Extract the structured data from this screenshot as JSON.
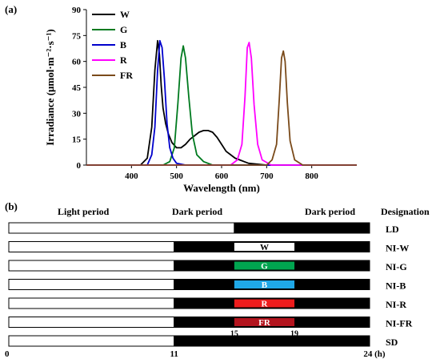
{
  "panel_a_label": "(a)",
  "panel_b_label": "(b)",
  "chart_data": [
    {
      "type": "line",
      "xlabel": "Wavelength (nm)",
      "ylabel": "Irradiance (μmol·m⁻²·s⁻¹)",
      "xlim": [
        300,
        900
      ],
      "ylim": [
        0,
        90
      ],
      "xticks": [
        400,
        500,
        600,
        700,
        800
      ],
      "yticks": [
        0,
        15,
        30,
        45,
        60,
        75,
        90
      ],
      "legend_position": "top-left",
      "series": [
        {
          "name": "W",
          "color": "#000000",
          "x": [
            300,
            420,
            435,
            445,
            452,
            458,
            462,
            466,
            470,
            476,
            482,
            490,
            500,
            510,
            520,
            530,
            540,
            550,
            560,
            570,
            580,
            590,
            600,
            610,
            620,
            630,
            640,
            650,
            660,
            680,
            700,
            900
          ],
          "y": [
            0,
            0,
            4,
            22,
            55,
            72,
            64,
            46,
            33,
            24,
            18,
            13,
            10,
            10,
            12,
            15,
            17,
            19,
            20,
            20,
            19,
            16,
            12,
            8,
            6,
            4,
            3,
            2,
            1,
            0.5,
            0,
            0
          ]
        },
        {
          "name": "G",
          "color": "#007a1f",
          "x": [
            300,
            470,
            485,
            495,
            503,
            510,
            515,
            520,
            527,
            535,
            545,
            560,
            580,
            900
          ],
          "y": [
            0,
            0,
            2,
            10,
            36,
            62,
            69,
            62,
            40,
            18,
            6,
            2,
            0,
            0
          ]
        },
        {
          "name": "B",
          "color": "#0000cc",
          "x": [
            300,
            435,
            445,
            452,
            458,
            463,
            468,
            473,
            479,
            485,
            492,
            500,
            520,
            900
          ],
          "y": [
            0,
            0,
            6,
            22,
            55,
            72,
            68,
            50,
            24,
            10,
            4,
            1,
            0,
            0
          ]
        },
        {
          "name": "R",
          "color": "#ff00ff",
          "x": [
            300,
            620,
            635,
            645,
            652,
            657,
            661,
            666,
            672,
            680,
            690,
            710,
            900
          ],
          "y": [
            0,
            0,
            3,
            12,
            40,
            68,
            71,
            62,
            35,
            12,
            3,
            0,
            0
          ]
        },
        {
          "name": "FR",
          "color": "#7a4a1a",
          "x": [
            300,
            700,
            712,
            722,
            728,
            733,
            737,
            741,
            746,
            752,
            762,
            780,
            900
          ],
          "y": [
            0,
            0,
            3,
            12,
            38,
            62,
            66,
            60,
            36,
            14,
            3,
            0,
            0
          ]
        }
      ]
    },
    {
      "type": "timeline",
      "xlim": [
        0,
        24
      ],
      "header": {
        "light": "Light period",
        "dark1": "Dark period",
        "dark2": "Dark period",
        "designation": "Designation"
      },
      "axis_labels": [
        {
          "value": 0,
          "label": "0"
        },
        {
          "value": 11,
          "label": "11"
        },
        {
          "value": 24,
          "label": "24 (h)"
        }
      ],
      "break_labels": [
        {
          "value": 15,
          "label": "15"
        },
        {
          "value": 19,
          "label": "19"
        }
      ],
      "rows": [
        {
          "designation": "LD",
          "light_end": 15
        },
        {
          "designation": "NI-W",
          "light_end": 11,
          "ni": {
            "start": 15,
            "end": 19,
            "label": "W",
            "color": "#ffffff",
            "text_color": "#000000"
          }
        },
        {
          "designation": "NI-G",
          "light_end": 11,
          "ni": {
            "start": 15,
            "end": 19,
            "label": "G",
            "color": "#00a550",
            "text_color": "#ffffff"
          }
        },
        {
          "designation": "NI-B",
          "light_end": 11,
          "ni": {
            "start": 15,
            "end": 19,
            "label": "B",
            "color": "#1fa8e8",
            "text_color": "#ffffff"
          }
        },
        {
          "designation": "NI-R",
          "light_end": 11,
          "ni": {
            "start": 15,
            "end": 19,
            "label": "R",
            "color": "#ee1c1c",
            "text_color": "#ffffff"
          }
        },
        {
          "designation": "NI-FR",
          "light_end": 11,
          "ni": {
            "start": 15,
            "end": 19,
            "label": "FR",
            "color": "#b3141e",
            "text_color": "#ffffff"
          }
        },
        {
          "designation": "SD",
          "light_end": 11
        }
      ]
    }
  ]
}
